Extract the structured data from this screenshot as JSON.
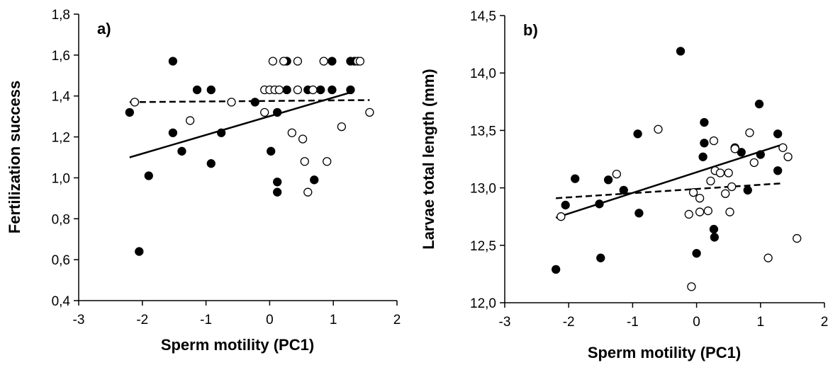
{
  "chart_data": [
    {
      "type": "scatter",
      "panel_label": "a)",
      "xlabel": "Sperm motility (PC1)",
      "ylabel": "Fertilization success",
      "xlim": [
        -3,
        2
      ],
      "ylim": [
        0.4,
        1.8
      ],
      "x_ticks": [
        -3,
        -2,
        -1,
        0,
        1,
        2
      ],
      "y_ticks": [
        0.4,
        0.6,
        0.8,
        1.0,
        1.2,
        1.4,
        1.6,
        1.8
      ],
      "x_tick_labels": [
        "-3",
        "-2",
        "-1",
        "0",
        "1",
        "2"
      ],
      "y_tick_labels": [
        "0,4",
        "0,6",
        "0,8",
        "1,0",
        "1,2",
        "1,4",
        "1,6",
        "1,8"
      ],
      "grid": false,
      "series": [
        {
          "marker": "filled-circle",
          "color": "#000000",
          "points": [
            [
              -2.2,
              1.32
            ],
            [
              -2.05,
              0.64
            ],
            [
              -1.9,
              1.01
            ],
            [
              -1.52,
              1.57
            ],
            [
              -1.52,
              1.22
            ],
            [
              -1.38,
              1.13
            ],
            [
              -1.14,
              1.43
            ],
            [
              -0.92,
              1.43
            ],
            [
              -0.92,
              1.07
            ],
            [
              -0.76,
              1.22
            ],
            [
              -0.23,
              1.37
            ],
            [
              0.02,
              1.13
            ],
            [
              0.12,
              1.32
            ],
            [
              0.12,
              0.98
            ],
            [
              0.12,
              0.93
            ],
            [
              0.27,
              1.57
            ],
            [
              0.27,
              1.43
            ],
            [
              0.6,
              1.43
            ],
            [
              0.7,
              0.99
            ],
            [
              0.8,
              1.43
            ],
            [
              0.98,
              1.57
            ],
            [
              0.98,
              1.43
            ],
            [
              1.27,
              1.57
            ],
            [
              1.27,
              1.43
            ],
            [
              1.33,
              1.57
            ]
          ],
          "trend": {
            "style": "solid",
            "x": [
              -2.2,
              1.3
            ],
            "y": [
              1.1,
              1.42
            ]
          }
        },
        {
          "marker": "open-circle",
          "color": "#000000",
          "points": [
            [
              -2.12,
              1.37
            ],
            [
              -1.25,
              1.28
            ],
            [
              -0.6,
              1.37
            ],
            [
              -0.08,
              1.32
            ],
            [
              -0.08,
              1.43
            ],
            [
              0.0,
              1.43
            ],
            [
              0.05,
              1.57
            ],
            [
              0.08,
              1.43
            ],
            [
              0.15,
              1.43
            ],
            [
              0.22,
              1.57
            ],
            [
              0.35,
              1.22
            ],
            [
              0.44,
              1.57
            ],
            [
              0.44,
              1.43
            ],
            [
              0.52,
              1.19
            ],
            [
              0.55,
              1.08
            ],
            [
              0.6,
              0.93
            ],
            [
              0.68,
              1.43
            ],
            [
              0.85,
              1.57
            ],
            [
              0.9,
              1.08
            ],
            [
              1.13,
              1.25
            ],
            [
              1.38,
              1.57
            ],
            [
              1.42,
              1.57
            ],
            [
              1.57,
              1.32
            ]
          ],
          "trend": {
            "style": "dashed",
            "x": [
              -2.2,
              1.57
            ],
            "y": [
              1.37,
              1.38
            ]
          }
        }
      ]
    },
    {
      "type": "scatter",
      "panel_label": "b)",
      "xlabel": "Sperm motility (PC1)",
      "ylabel": "Larvae total length (mm)",
      "xlim": [
        -3,
        2
      ],
      "ylim": [
        12.0,
        14.5
      ],
      "x_ticks": [
        -3,
        -2,
        -1,
        0,
        1,
        2
      ],
      "y_ticks": [
        12.0,
        12.5,
        13.0,
        13.5,
        14.0,
        14.5
      ],
      "x_tick_labels": [
        "-3",
        "-2",
        "-1",
        "0",
        "1",
        "2"
      ],
      "y_tick_labels": [
        "12,0",
        "12,5",
        "13,0",
        "13,5",
        "14,0",
        "14,5"
      ],
      "grid": false,
      "series": [
        {
          "marker": "filled-circle",
          "color": "#000000",
          "points": [
            [
              -2.2,
              12.29
            ],
            [
              -2.05,
              12.85
            ],
            [
              -1.9,
              13.08
            ],
            [
              -1.52,
              12.86
            ],
            [
              -1.5,
              12.39
            ],
            [
              -1.38,
              13.07
            ],
            [
              -1.14,
              12.98
            ],
            [
              -0.92,
              13.47
            ],
            [
              -0.9,
              12.78
            ],
            [
              -0.25,
              14.19
            ],
            [
              0.0,
              12.43
            ],
            [
              0.1,
              13.27
            ],
            [
              0.12,
              13.39
            ],
            [
              0.12,
              13.57
            ],
            [
              0.27,
              12.64
            ],
            [
              0.28,
              12.57
            ],
            [
              0.6,
              13.35
            ],
            [
              0.7,
              13.31
            ],
            [
              0.8,
              12.98
            ],
            [
              0.98,
              13.73
            ],
            [
              1.0,
              13.29
            ],
            [
              1.27,
              13.47
            ],
            [
              1.27,
              13.15
            ]
          ],
          "trend": {
            "style": "solid",
            "x": [
              -2.2,
              1.3
            ],
            "y": [
              12.74,
              13.37
            ]
          }
        },
        {
          "marker": "open-circle",
          "color": "#000000",
          "points": [
            [
              -2.12,
              12.75
            ],
            [
              -1.25,
              13.12
            ],
            [
              -0.6,
              13.51
            ],
            [
              -0.12,
              12.77
            ],
            [
              -0.08,
              12.14
            ],
            [
              -0.05,
              12.96
            ],
            [
              0.05,
              12.91
            ],
            [
              0.05,
              12.79
            ],
            [
              0.18,
              12.8
            ],
            [
              0.22,
              13.06
            ],
            [
              0.27,
              13.41
            ],
            [
              0.29,
              13.15
            ],
            [
              0.37,
              13.13
            ],
            [
              0.45,
              12.95
            ],
            [
              0.5,
              13.13
            ],
            [
              0.52,
              12.79
            ],
            [
              0.55,
              13.01
            ],
            [
              0.6,
              13.34
            ],
            [
              0.83,
              13.48
            ],
            [
              0.9,
              13.22
            ],
            [
              1.12,
              12.39
            ],
            [
              1.35,
              13.35
            ],
            [
              1.43,
              13.27
            ],
            [
              1.57,
              12.56
            ]
          ],
          "trend": {
            "style": "dashed",
            "x": [
              -2.2,
              1.35
            ],
            "y": [
              12.91,
              13.04
            ]
          }
        }
      ]
    }
  ]
}
